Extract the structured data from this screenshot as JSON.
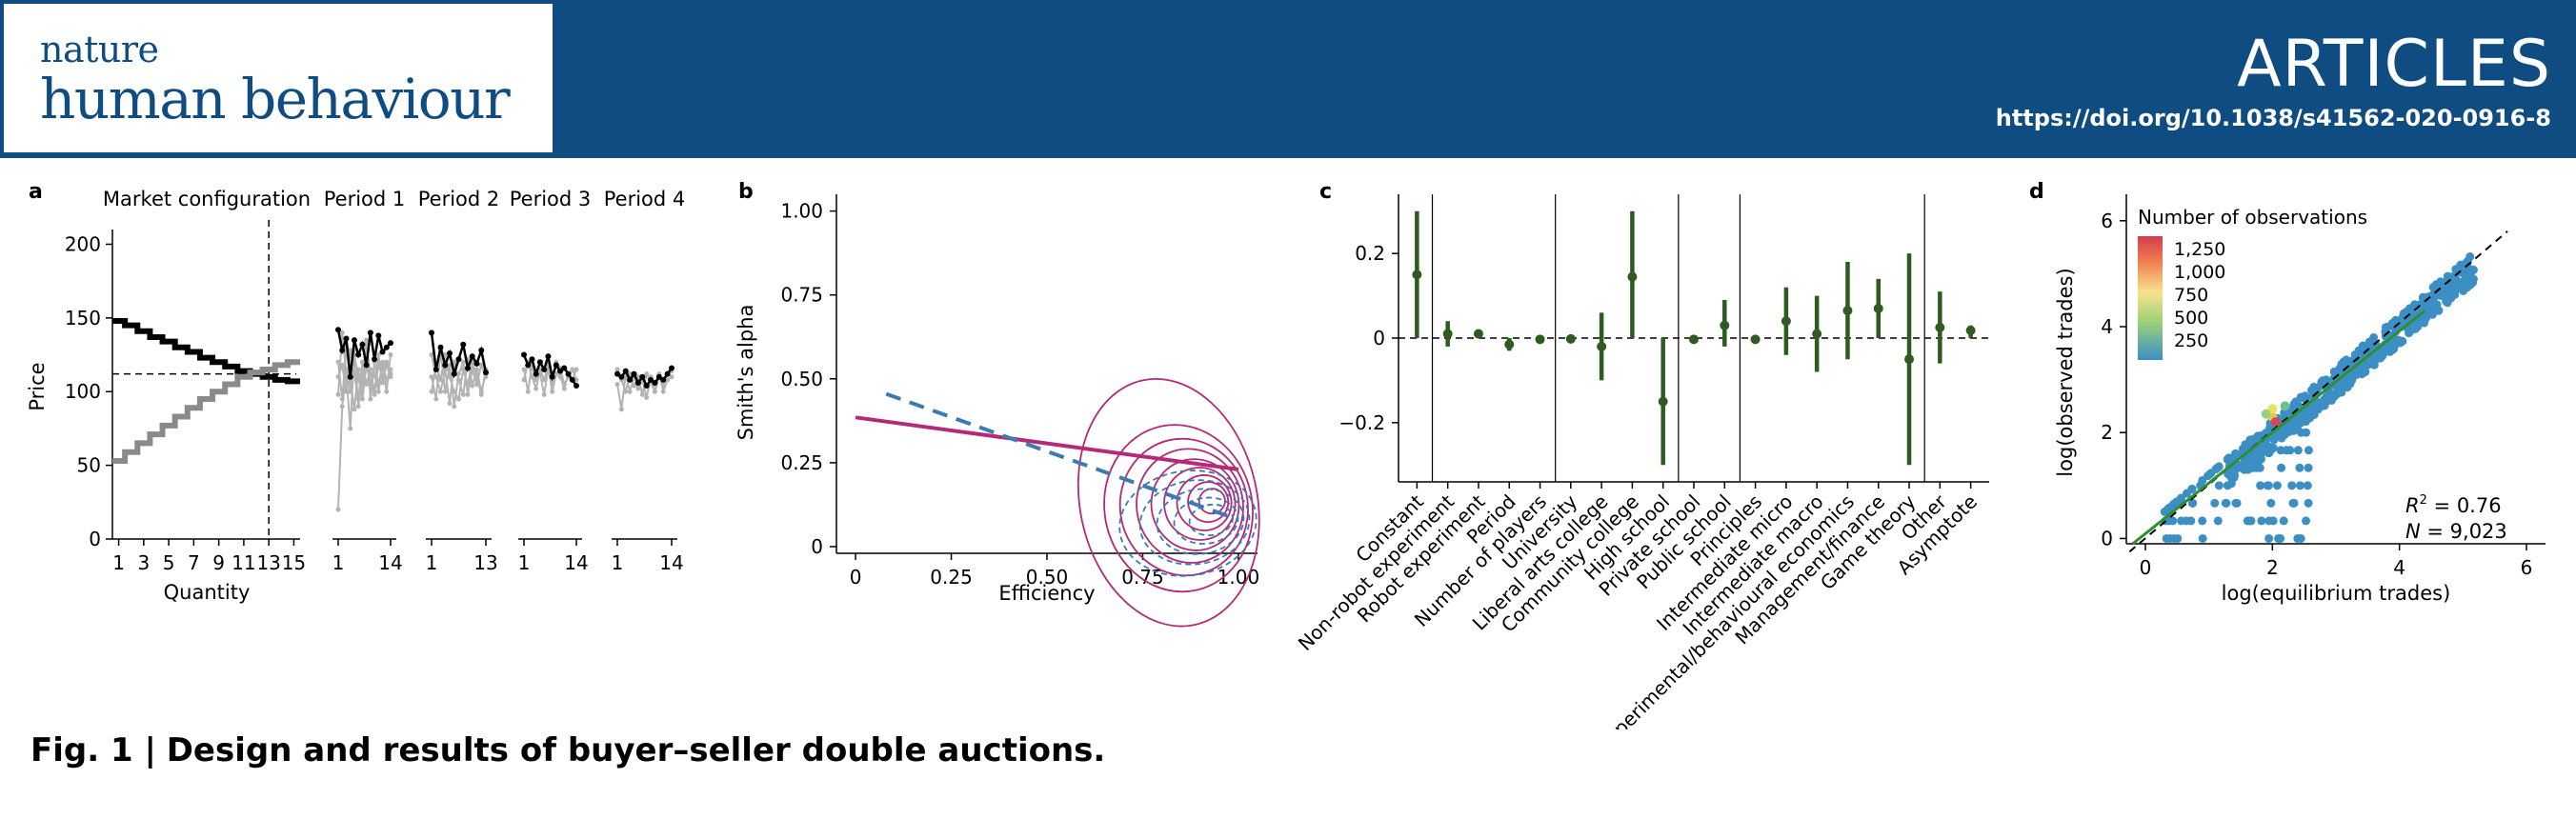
{
  "journal": {
    "name_line1": "nature",
    "name_line2": "human behaviour",
    "section": "ARTICLES",
    "doi": "https://doi.org/10.1038/s41562-020-0916-8"
  },
  "caption": {
    "label": "Fig. 1 |",
    "text": "Design and results of buyer–seller double auctions."
  },
  "colors": {
    "banner": "#0e4c82",
    "olive": "#2e5b1f",
    "magenta": "#b52a76",
    "blue": "#3b7ab4",
    "hex": "#3b8fc5"
  },
  "chart_data": [
    {
      "panel": "a",
      "type": "line",
      "title": "Market configuration",
      "xlabel": "Quantity",
      "ylabel": "Price",
      "x_ticks": [
        "1",
        "3",
        "5",
        "7",
        "9",
        "11",
        "13",
        "15"
      ],
      "y_ticks": [
        "0",
        "50",
        "100",
        "150",
        "200"
      ],
      "ylim": [
        0,
        210
      ],
      "xlim": [
        0.5,
        15.5
      ],
      "equilibrium_price": 112,
      "equilibrium_quantity": 13,
      "demand": {
        "x": [
          1,
          2,
          3,
          4,
          5,
          6,
          7,
          8,
          9,
          10,
          11,
          12,
          13,
          14,
          15
        ],
        "y": [
          148,
          145,
          141,
          137,
          134,
          130,
          127,
          123,
          120,
          117,
          114,
          112,
          110,
          108,
          107
        ]
      },
      "supply": {
        "x": [
          1,
          2,
          3,
          4,
          5,
          6,
          7,
          8,
          9,
          10,
          11,
          12,
          13,
          14,
          15
        ],
        "y": [
          53,
          59,
          65,
          71,
          77,
          83,
          89,
          95,
          100,
          105,
          110,
          113,
          115,
          118,
          120
        ]
      },
      "periods": [
        {
          "title": "Period 1",
          "x_ticks": [
            "1",
            "14"
          ],
          "n": 14,
          "traded": [
            142,
            128,
            136,
            110,
            135,
            125,
            132,
            118,
            140,
            122,
            138,
            127,
            130,
            133
          ],
          "gray": [
            [
              98,
              140,
              112,
              75,
              128,
              90,
              110,
              135,
              95,
              120,
              105,
              118,
              100,
              125
            ],
            [
              120,
              95,
              130,
              108,
              88,
              115,
              100,
              132,
              112,
              98,
              125,
              106,
              118,
              110
            ],
            [
              20,
              90,
              115,
              100,
              125,
              110,
              95,
              118,
              105,
              112,
              100,
              120,
              108,
              115
            ],
            [
              110,
              118,
              100,
              128,
              112,
              95,
              120,
              105,
              115,
              100,
              118,
              110,
              120,
              112
            ]
          ]
        },
        {
          "title": "Period 2",
          "x_ticks": [
            "1",
            "13"
          ],
          "n": 13,
          "traded": [
            140,
            115,
            130,
            118,
            126,
            112,
            122,
            132,
            116,
            124,
            119,
            128,
            113
          ],
          "gray": [
            [
              110,
              95,
              128,
              100,
              118,
              90,
              112,
              120,
              98,
              115,
              105,
              118,
              110
            ],
            [
              125,
              110,
              100,
              115,
              92,
              120,
              108,
              98,
              122,
              104,
              115,
              100,
              112
            ],
            [
              100,
              118,
              108,
              125,
              110,
              100,
              95,
              115,
              105,
              120,
              110,
              98,
              115
            ]
          ]
        },
        {
          "title": "Period 3",
          "x_ticks": [
            "1",
            "14"
          ],
          "n": 14,
          "traded": [
            125,
            118,
            122,
            112,
            120,
            115,
            124,
            110,
            118,
            114,
            116,
            112,
            108,
            104
          ],
          "gray": [
            [
              115,
              100,
              118,
              108,
              112,
              98,
              115,
              105,
              120,
              110,
              102,
              112,
              108,
              115
            ],
            [
              108,
              120,
              110,
              102,
              115,
              108,
              118,
              100,
              112,
              116,
              105,
              110,
              115,
              108
            ]
          ]
        },
        {
          "title": "Period 4",
          "x_ticks": [
            "1",
            "14"
          ],
          "n": 14,
          "traded": [
            112,
            110,
            114,
            108,
            112,
            106,
            110,
            104,
            108,
            106,
            110,
            108,
            112,
            116
          ],
          "gray": [
            [
              105,
              88,
              112,
              100,
              110,
              102,
              108,
              96,
              110,
              104,
              112,
              100,
              108,
              110
            ],
            [
              115,
              108,
              100,
              112,
              104,
              110,
              98,
              112,
              106,
              100,
              110,
              104,
              112,
              114
            ]
          ]
        }
      ]
    },
    {
      "panel": "b",
      "type": "line",
      "xlabel": "Efficiency",
      "ylabel": "Smith's alpha",
      "x_ticks": [
        "0",
        "0.25",
        "0.50",
        "0.75",
        "1.00"
      ],
      "y_ticks": [
        "0",
        "0.25",
        "0.50",
        "0.75",
        "1.00"
      ],
      "xlim": [
        -0.05,
        1.05
      ],
      "ylim": [
        -0.02,
        1.05
      ],
      "series": [
        {
          "style": "solid",
          "color": "magenta",
          "x": [
            0,
            1.0
          ],
          "y": [
            0.385,
            0.23
          ]
        },
        {
          "style": "dashed",
          "color": "blue",
          "x": [
            0.08,
            1.0
          ],
          "y": [
            0.455,
            0.08
          ]
        }
      ]
    },
    {
      "panel": "c",
      "type": "scatter",
      "ylim": [
        -0.34,
        0.34
      ],
      "y_ticks": [
        "-0.2",
        "0",
        "0.2"
      ],
      "y_tick_values": [
        -0.2,
        0,
        0.2
      ],
      "categories": [
        "Constant",
        "Non-robot experiment",
        "Robot experiment",
        "Period",
        "Number of players",
        "University",
        "Liberal arts college",
        "Community college",
        "High school",
        "Private school",
        "Public school",
        "Principles",
        "Intermediate micro",
        "Intermediate macro",
        "Experimental/behavioural economics",
        "Management/finance",
        "Game theory",
        "Other",
        "Asymptote"
      ],
      "estimates": [
        0.15,
        0.01,
        0.01,
        -0.015,
        -0.003,
        -0.002,
        -0.02,
        0.145,
        -0.15,
        -0.003,
        0.03,
        -0.003,
        0.04,
        0.01,
        0.065,
        0.07,
        -0.05,
        0.025,
        0.018
      ],
      "lower": [
        0.0,
        -0.02,
        0.0,
        -0.03,
        -0.012,
        -0.01,
        -0.1,
        0.0,
        -0.3,
        -0.008,
        -0.02,
        -0.008,
        -0.04,
        -0.08,
        -0.05,
        0.0,
        -0.3,
        -0.06,
        0.0
      ],
      "upper": [
        0.3,
        0.04,
        0.02,
        0.0,
        0.006,
        0.006,
        0.06,
        0.3,
        0.0,
        0.002,
        0.09,
        0.003,
        0.12,
        0.1,
        0.18,
        0.14,
        0.2,
        0.11,
        0.03
      ],
      "group_breaks_after": [
        0,
        4,
        8,
        10,
        16
      ]
    },
    {
      "panel": "d",
      "type": "heatmap",
      "xlabel": "log(equilibrium trades)",
      "ylabel": "log(observed trades)",
      "x_ticks": [
        "0",
        "2",
        "4",
        "6"
      ],
      "y_ticks": [
        "0",
        "2",
        "4",
        "6"
      ],
      "xlim": [
        -0.3,
        6.3
      ],
      "ylim": [
        -0.1,
        6.5
      ],
      "legend_title": "Number of observations",
      "legend_ticks": [
        "1,250",
        "1,000",
        "750",
        "500",
        "250"
      ],
      "legend_position": "top-left",
      "r2_label": "R",
      "r2_sup": "2",
      "r2_value": " = 0.76",
      "n_label": "N",
      "n_value": " = 9,023"
    }
  ]
}
